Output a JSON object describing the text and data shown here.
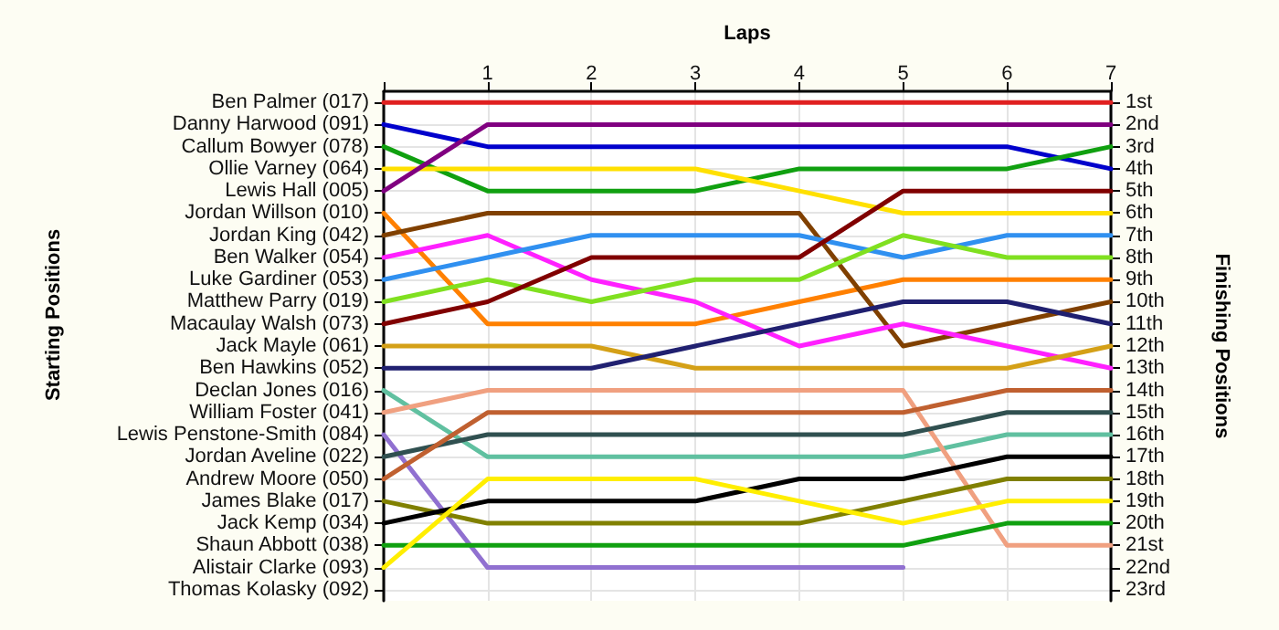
{
  "chart_data": {
    "type": "line",
    "xlabel": "Laps",
    "annotations": [
      "Starting Positions"
    ],
    "y2label": "Finishing Positions",
    "x": [
      0,
      1,
      2,
      3,
      4,
      5,
      6,
      7
    ],
    "xlim": [
      0,
      7
    ],
    "xticks": [
      {
        "value": 0,
        "label": null
      },
      1,
      2,
      3,
      4,
      5,
      6,
      7
    ],
    "y_categories": [
      "Ben Palmer (017)",
      "Danny Harwood (091)",
      "Callum Bowyer (078)",
      "Ollie Varney (064)",
      "Lewis Hall (005)",
      "Jordan Willson (010)",
      "Jordan King (042)",
      "Ben Walker (054)",
      "Luke Gardiner (053)",
      "Matthew Parry (019)",
      "Macaulay Walsh (073)",
      "Jack Mayle (061)",
      "Ben Hawkins (052)",
      "Declan Jones (016)",
      "William Foster (041)",
      "Lewis Penstone-Smith (084)",
      "Jordan Aveline (022)",
      "Andrew Moore (050)",
      "James Blake (017)",
      "Jack Kemp (034)",
      "Shaun Abbott (038)",
      "Alistair Clarke (093)",
      "Thomas Kolasky (092)"
    ],
    "y2lim": [
      23.5,
      0.5
    ],
    "y2ticks": [
      {
        "value": 1,
        "label": "1st"
      },
      {
        "value": 2,
        "label": "2nd"
      },
      {
        "value": 3,
        "label": "3rd"
      },
      {
        "value": 4,
        "label": "4th"
      },
      {
        "value": 5,
        "label": "5th"
      },
      {
        "value": 6,
        "label": "6th"
      },
      {
        "value": 7,
        "label": "7th"
      },
      {
        "value": 8,
        "label": "8th"
      },
      {
        "value": 9,
        "label": "9th"
      },
      {
        "value": 10,
        "label": "10th"
      },
      {
        "value": 11,
        "label": "11th"
      },
      {
        "value": 12,
        "label": "12th"
      },
      {
        "value": 13,
        "label": "13th"
      },
      {
        "value": 14,
        "label": "14th"
      },
      {
        "value": 15,
        "label": "15th"
      },
      {
        "value": 16,
        "label": "16th"
      },
      {
        "value": 17,
        "label": "17th"
      },
      {
        "value": 18,
        "label": "18th"
      },
      {
        "value": 19,
        "label": "19th"
      },
      {
        "value": 20,
        "label": "20th"
      },
      {
        "value": 21,
        "label": "21st"
      },
      {
        "value": 22,
        "label": "22nd"
      },
      {
        "value": 23,
        "label": "23rd"
      }
    ],
    "grid": true,
    "marker": "none",
    "line_style": "solid",
    "series": [
      {
        "color": "#e02020",
        "axis": "y2",
        "values": [
          1,
          1,
          1,
          1,
          1,
          1,
          1,
          1
        ]
      },
      {
        "color": "#0000cc",
        "axis": "y2",
        "values": [
          2,
          3,
          3,
          3,
          3,
          3,
          3,
          4
        ]
      },
      {
        "color": "#10a010",
        "axis": "y2",
        "values": [
          3,
          5,
          5,
          5,
          4,
          4,
          4,
          3
        ]
      },
      {
        "color": "#ffe000",
        "axis": "y2",
        "values": [
          4,
          4,
          4,
          4,
          5,
          6,
          6,
          6
        ]
      },
      {
        "color": "#800080",
        "axis": "y2",
        "values": [
          5,
          2,
          2,
          2,
          2,
          2,
          2,
          2
        ]
      },
      {
        "color": "#ff8000",
        "axis": "y2",
        "values": [
          6,
          11,
          11,
          11,
          10,
          9,
          9,
          9
        ]
      },
      {
        "color": "#804000",
        "axis": "y2",
        "values": [
          7,
          6,
          6,
          6,
          6,
          12,
          11,
          10
        ]
      },
      {
        "color": "#ff20ff",
        "axis": "y2",
        "values": [
          8,
          7,
          9,
          10,
          12,
          11,
          12,
          13
        ]
      },
      {
        "color": "#3090f0",
        "axis": "y2",
        "values": [
          9,
          8,
          7,
          7,
          7,
          8,
          7,
          7
        ]
      },
      {
        "color": "#80e020",
        "axis": "y2",
        "values": [
          10,
          9,
          10,
          9,
          9,
          7,
          8,
          8
        ]
      },
      {
        "color": "#800000",
        "axis": "y2",
        "values": [
          11,
          10,
          8,
          8,
          8,
          5,
          5,
          5
        ]
      },
      {
        "color": "#d4a017",
        "axis": "y2",
        "values": [
          12,
          12,
          12,
          13,
          13,
          13,
          13,
          12
        ]
      },
      {
        "color": "#202070",
        "axis": "y2",
        "values": [
          13,
          13,
          13,
          12,
          11,
          10,
          10,
          11
        ]
      },
      {
        "color": "#60c0a0",
        "axis": "y2",
        "values": [
          14,
          17,
          17,
          17,
          17,
          17,
          16,
          16
        ]
      },
      {
        "color": "#f0a080",
        "axis": "y2",
        "values": [
          15,
          14,
          14,
          14,
          14,
          14,
          21,
          21
        ]
      },
      {
        "color": "#9070d0",
        "axis": "y2",
        "values": [
          16,
          22,
          22,
          22,
          22,
          22,
          null,
          null
        ]
      },
      {
        "color": "#305050",
        "axis": "y2",
        "values": [
          17,
          16,
          16,
          16,
          16,
          16,
          15,
          15
        ]
      },
      {
        "color": "#c06030",
        "axis": "y2",
        "values": [
          18,
          15,
          15,
          15,
          15,
          15,
          14,
          14
        ]
      },
      {
        "color": "#808000",
        "axis": "y2",
        "values": [
          19,
          20,
          20,
          20,
          20,
          19,
          18,
          18
        ]
      },
      {
        "color": "#000000",
        "axis": "y2",
        "values": [
          20,
          19,
          19,
          19,
          18,
          18,
          17,
          17
        ]
      },
      {
        "color": "#10a010",
        "axis": "y2",
        "values": [
          21,
          21,
          21,
          21,
          21,
          21,
          20,
          20
        ]
      },
      {
        "color": "#ffee00",
        "axis": "y2",
        "values": [
          22,
          18,
          18,
          18,
          19,
          20,
          19,
          19
        ]
      }
    ]
  }
}
